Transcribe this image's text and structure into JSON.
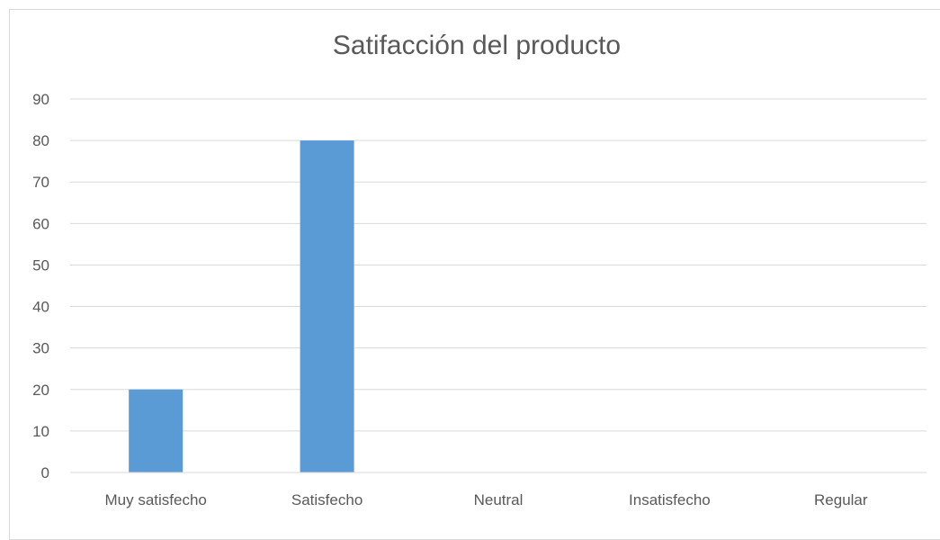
{
  "chart_data": {
    "type": "bar",
    "title": "Satifacción del producto",
    "categories": [
      "Muy satisfecho",
      "Satisfecho",
      "Neutral",
      "Insatisfecho",
      "Regular"
    ],
    "values": [
      20,
      80,
      0,
      0,
      0
    ],
    "xlabel": "",
    "ylabel": "",
    "ylim": [
      0,
      90
    ],
    "yticks": [
      0,
      10,
      20,
      30,
      40,
      50,
      60,
      70,
      80,
      90
    ],
    "grid": true,
    "legend": "none",
    "bar_color": "#5b9bd5",
    "grid_color": "#d9d9d9",
    "text_color": "#595959"
  }
}
